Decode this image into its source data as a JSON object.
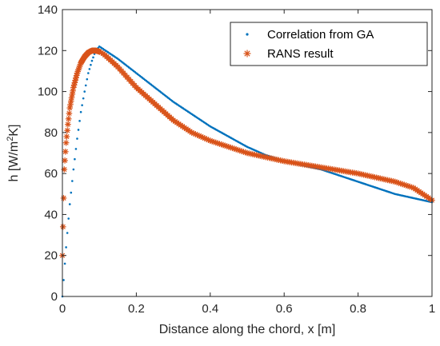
{
  "chart_data": {
    "type": "scatter",
    "xlabel": "Distance along the chord, x [m]",
    "ylabel": {
      "prefix": "h [W/m",
      "sup": "2",
      "suffix": "K]"
    },
    "xlim": [
      0,
      1
    ],
    "ylim": [
      0,
      140
    ],
    "xticks": [
      0,
      0.2,
      0.4,
      0.6,
      0.8,
      1
    ],
    "xtick_labels": [
      "0",
      "0.2",
      "0.4",
      "0.6",
      "0.8",
      "1"
    ],
    "yticks": [
      0,
      20,
      40,
      60,
      80,
      100,
      120,
      140
    ],
    "ytick_labels": [
      "0",
      "20",
      "40",
      "60",
      "80",
      "100",
      "120",
      "140"
    ],
    "grid": false,
    "legend_position": "top-right",
    "colors": {
      "correlation": "#0072bd",
      "rans": "#d95319",
      "axes": "#262626"
    },
    "series": [
      {
        "name": "Correlation from GA",
        "marker": "dot",
        "x": [
          0,
          0.005,
          0.01,
          0.02,
          0.03,
          0.04,
          0.05,
          0.06,
          0.07,
          0.08,
          0.09,
          0.1,
          0.15,
          0.2,
          0.25,
          0.3,
          0.35,
          0.4,
          0.45,
          0.5,
          0.55,
          0.6,
          0.65,
          0.7,
          0.75,
          0.8,
          0.85,
          0.9,
          0.95,
          1.0
        ],
        "y": [
          0,
          12,
          24,
          45,
          62,
          77,
          90,
          100,
          109,
          115,
          120,
          122,
          116,
          109,
          102,
          95,
          89,
          83,
          78,
          73,
          69,
          66,
          64,
          62,
          59,
          56,
          53,
          50,
          48,
          46
        ]
      },
      {
        "name": "RANS result",
        "marker": "asterisk",
        "x": [
          0,
          0.005,
          0.01,
          0.015,
          0.02,
          0.03,
          0.04,
          0.05,
          0.06,
          0.07,
          0.08,
          0.09,
          0.1,
          0.11,
          0.12,
          0.15,
          0.2,
          0.25,
          0.3,
          0.35,
          0.4,
          0.45,
          0.5,
          0.55,
          0.6,
          0.65,
          0.7,
          0.75,
          0.8,
          0.85,
          0.9,
          0.95,
          1.0
        ],
        "y": [
          20,
          62,
          75,
          84,
          92,
          102,
          109,
          114,
          117,
          119,
          120,
          120,
          119.5,
          118.5,
          117,
          112,
          102,
          94,
          86,
          80,
          76,
          73,
          70,
          68,
          66,
          64.5,
          63,
          61.5,
          60,
          58,
          56,
          53,
          47
        ]
      }
    ]
  }
}
